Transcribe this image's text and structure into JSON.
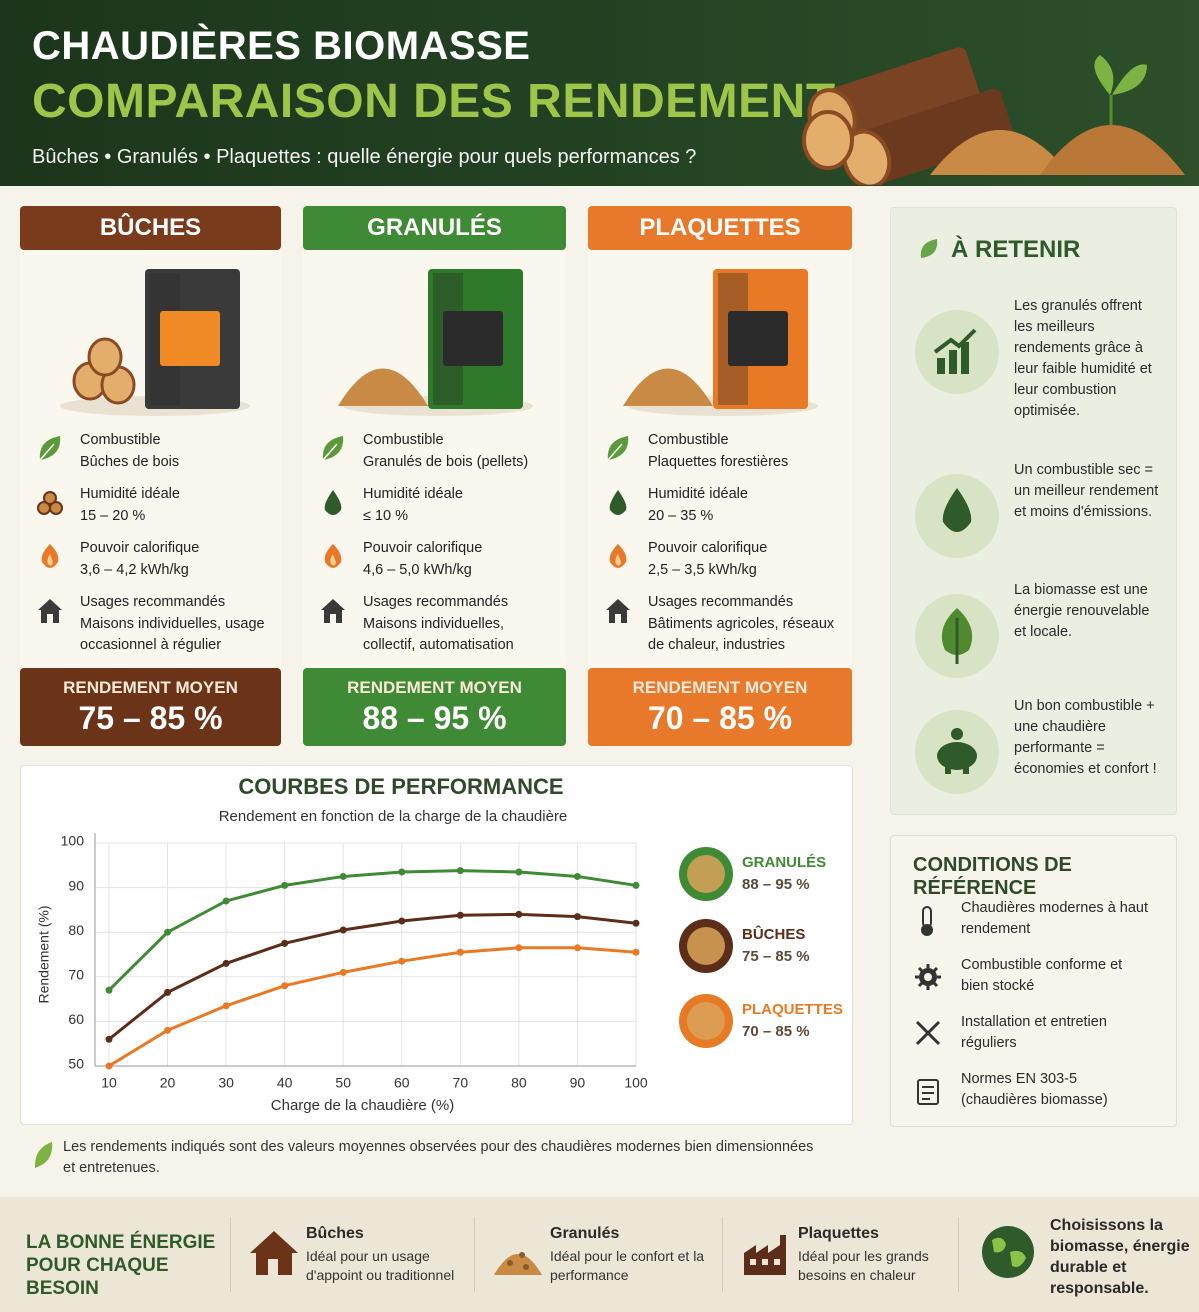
{
  "header": {
    "title_line1": "CHAUDIÈRES BIOMASSE",
    "title_line2": "COMPARAISON DES RENDEMENTS",
    "subtitle": "Bûches • Granulés • Plaquettes : quelle énergie pour quels performances ?"
  },
  "cards": [
    {
      "title": "BÛCHES",
      "rows": [
        {
          "label": "Combustible",
          "value": "Bûches de bois"
        },
        {
          "label": "Humidité idéale",
          "value": "15 – 20 %"
        },
        {
          "label": "Pouvoir calorifique",
          "value": "3,6 – 4,2 kWh/kg"
        },
        {
          "label": "Usages recommandés",
          "value": "Maisons individuelles, usage occasionnel à régulier"
        }
      ],
      "result_label": "RENDEMENT MOYEN",
      "result": "75 – 85 %"
    },
    {
      "title": "GRANULÉS",
      "rows": [
        {
          "label": "Combustible",
          "value": "Granulés de bois (pellets)"
        },
        {
          "label": "Humidité idéale",
          "value": "≤ 10 %"
        },
        {
          "label": "Pouvoir calorifique",
          "value": "4,6 – 5,0 kWh/kg"
        },
        {
          "label": "Usages recommandés",
          "value": "Maisons individuelles, collectif, automatisation"
        }
      ],
      "result_label": "RENDEMENT MOYEN",
      "result": "88 – 95 %"
    },
    {
      "title": "PLAQUETTES",
      "rows": [
        {
          "label": "Combustible",
          "value": "Plaquettes forestières"
        },
        {
          "label": "Humidité idéale",
          "value": "20 – 35 %"
        },
        {
          "label": "Pouvoir calorifique",
          "value": "2,5 – 3,5 kWh/kg"
        },
        {
          "label": "Usages recommandés",
          "value": "Bâtiments agricoles, réseaux de chaleur, industries"
        }
      ],
      "result_label": "RENDEMENT MOYEN",
      "result": "70 – 85 %"
    }
  ],
  "retenir": {
    "title": "À RETENIR",
    "items": [
      "Les granulés offrent les meilleurs rendements grâce à leur faible humidité et leur combustion optimisée.",
      "Un combustible sec = un meilleur rendement et moins d'émissions.",
      "La biomasse est une énergie renouvelable et locale.",
      "Un bon combustible + une chaudière performante = économies et confort !"
    ]
  },
  "conditions": {
    "title": "CONDITIONS DE RÉFÉRENCE",
    "items": [
      "Chaudières modernes à haut rendement",
      "Combustible conforme et bien stocké",
      "Installation et entretien réguliers",
      "Normes EN 303-5 (chaudières biomasse)"
    ]
  },
  "chart_data": {
    "type": "line",
    "title": "COURBES DE PERFORMANCE",
    "subtitle": "Rendement en fonction de la charge de la chaudière",
    "x_label": "Charge de la chaudière (%)",
    "y_label": "Rendement (%)",
    "x": [
      10,
      20,
      30,
      40,
      50,
      60,
      70,
      80,
      90,
      100
    ],
    "xlim": [
      10,
      100
    ],
    "xticks": [
      10,
      20,
      30,
      40,
      50,
      60,
      70,
      80,
      90,
      100
    ],
    "ylim": [
      50,
      100
    ],
    "yticks": [
      50,
      60,
      70,
      80,
      90,
      100
    ],
    "grid": true,
    "legend": "right",
    "series": [
      {
        "name": "GRANULÉS",
        "detail": "88 – 95 %",
        "color": "#3f8a35",
        "values": [
          67,
          80,
          87,
          90.5,
          92.5,
          93.5,
          93.8,
          93.5,
          92.5,
          90.5
        ]
      },
      {
        "name": "BÛCHES",
        "detail": "75 – 85 %",
        "color": "#5c2e1a",
        "values": [
          56,
          66.5,
          73,
          77.5,
          80.5,
          82.5,
          83.8,
          84,
          83.5,
          82
        ]
      },
      {
        "name": "PLAQUETTES",
        "detail": "70 – 85 %",
        "color": "#e87a25",
        "values": [
          50,
          58,
          63.5,
          68,
          71,
          73.5,
          75.5,
          76.5,
          76.5,
          75.5
        ]
      }
    ]
  },
  "footnote": "Les rendements indiqués sont des valeurs moyennes observées pour des chaudières modernes bien dimensionnées et entretenues.",
  "footer": {
    "title": "LA BONNE ÉNERGIE POUR CHAQUE BESOIN",
    "items": [
      {
        "title": "Bûches",
        "text": "Idéal pour un usage d'appoint ou traditionnel"
      },
      {
        "title": "Granulés",
        "text": "Idéal pour le confort et la performance"
      },
      {
        "title": "Plaquettes",
        "text": "Idéal pour les grands besoins en chaleur"
      }
    ],
    "closing": "Choisissons la biomasse, énergie durable et responsable."
  }
}
